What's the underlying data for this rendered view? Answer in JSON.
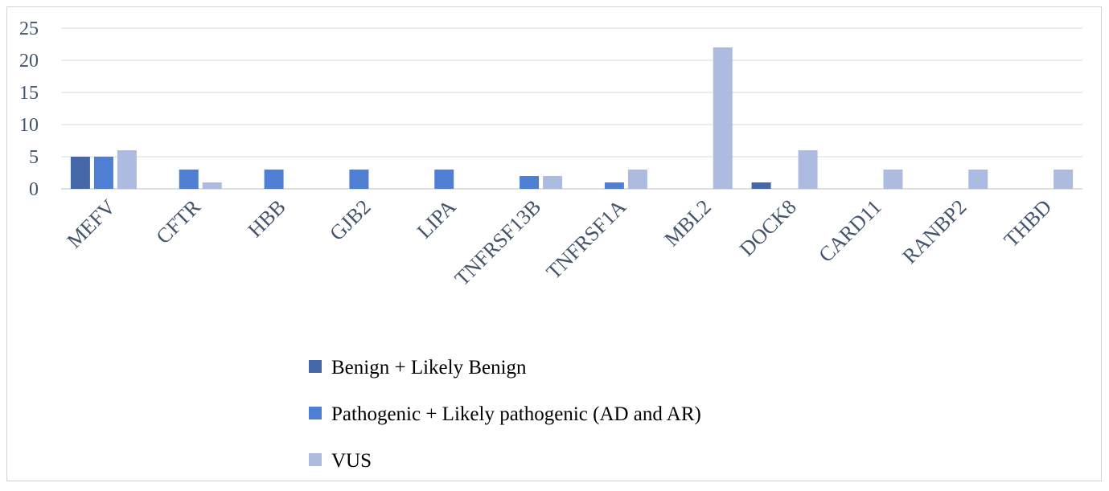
{
  "chart_data": {
    "type": "bar",
    "categories": [
      "MEFV",
      "CFTR",
      "HBB",
      "GJB2",
      "LIPA",
      "TNFRSF13B",
      "TNFRSF1A",
      "MBL2",
      "DOCK8",
      "CARD11",
      "RANBP2",
      "THBD"
    ],
    "series": [
      {
        "name": "Benign + Likely Benign",
        "color": "#4467a8",
        "values": [
          5,
          0,
          0,
          0,
          0,
          0,
          0,
          0,
          1,
          0,
          0,
          0
        ]
      },
      {
        "name": "Pathogenic + Likely pathogenic (AD and AR)",
        "color": "#4f7fd2",
        "values": [
          5,
          3,
          3,
          3,
          3,
          2,
          1,
          0,
          0,
          0,
          0,
          0
        ]
      },
      {
        "name": "VUS",
        "color": "#aebbe0",
        "values": [
          6,
          1,
          0,
          0,
          0,
          2,
          3,
          22,
          6,
          3,
          3,
          3
        ]
      }
    ],
    "yticks": [
      0,
      5,
      10,
      15,
      20,
      25
    ],
    "ylim": [
      0,
      25
    ],
    "grid": true,
    "legend_position": "bottom"
  }
}
